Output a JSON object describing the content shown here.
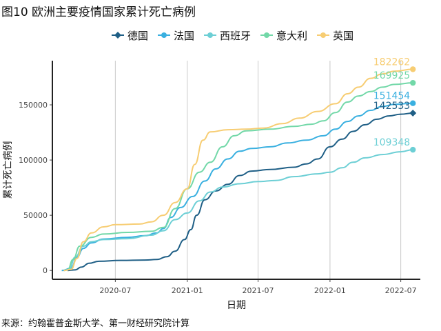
{
  "title": "图10 欧洲主要疫情国家累计死亡病例",
  "source": "来源：约翰霍普金斯大学、第一财经研究院计算",
  "chart_data": {
    "type": "line",
    "xlabel": "日期",
    "ylabel": "累计死亡病例",
    "x_ticks": [
      "2020-07",
      "2021-01",
      "2021-07",
      "2022-01",
      "2022-07"
    ],
    "y_ticks": [
      0,
      50000,
      100000,
      150000
    ],
    "y_tick_labels": [
      "0",
      "50000",
      "100000",
      "150000"
    ],
    "xlim": [
      "2020-01-22",
      "2022-08-20"
    ],
    "ylim": [
      -8000,
      190000
    ],
    "grid": "vertical major gridlines",
    "legend_position": "top",
    "series": [
      {
        "name": "德国",
        "color": "#1f5f86",
        "marker": "diamond",
        "end_label": "142533",
        "points": [
          [
            "2020-03-01",
            0
          ],
          [
            "2020-03-20",
            500
          ],
          [
            "2020-04-05",
            3000
          ],
          [
            "2020-04-25",
            6500
          ],
          [
            "2020-05-20",
            8300
          ],
          [
            "2020-07-15",
            9100
          ],
          [
            "2020-09-15",
            9400
          ],
          [
            "2020-10-15",
            9900
          ],
          [
            "2020-11-10",
            12500
          ],
          [
            "2020-12-01",
            17500
          ],
          [
            "2020-12-25",
            28000
          ],
          [
            "2021-01-10",
            37000
          ],
          [
            "2021-01-25",
            50000
          ],
          [
            "2021-02-15",
            64000
          ],
          [
            "2021-03-15",
            72000
          ],
          [
            "2021-04-15",
            78000
          ],
          [
            "2021-05-15",
            86000
          ],
          [
            "2021-06-15",
            90000
          ],
          [
            "2021-08-01",
            91500
          ],
          [
            "2021-10-01",
            93500
          ],
          [
            "2021-11-01",
            96500
          ],
          [
            "2021-12-01",
            101000
          ],
          [
            "2022-01-01",
            112000
          ],
          [
            "2022-02-01",
            119000
          ],
          [
            "2022-03-01",
            126000
          ],
          [
            "2022-04-01",
            132000
          ],
          [
            "2022-05-01",
            137000
          ],
          [
            "2022-06-01",
            140000
          ],
          [
            "2022-07-01",
            141500
          ],
          [
            "2022-08-01",
            142533
          ]
        ]
      },
      {
        "name": "法国",
        "color": "#3ab0e0",
        "marker": "circle",
        "end_label": "151454",
        "points": [
          [
            "2020-02-15",
            0
          ],
          [
            "2020-03-10",
            2000
          ],
          [
            "2020-03-25",
            12000
          ],
          [
            "2020-04-10",
            20000
          ],
          [
            "2020-05-01",
            25000
          ],
          [
            "2020-06-01",
            28500
          ],
          [
            "2020-08-01",
            30000
          ],
          [
            "2020-09-15",
            31500
          ],
          [
            "2020-10-15",
            34000
          ],
          [
            "2020-11-01",
            38000
          ],
          [
            "2020-11-20",
            48000
          ],
          [
            "2020-12-15",
            57000
          ],
          [
            "2021-01-15",
            67000
          ],
          [
            "2021-02-15",
            81000
          ],
          [
            "2021-03-15",
            92000
          ],
          [
            "2021-04-15",
            101000
          ],
          [
            "2021-05-15",
            108000
          ],
          [
            "2021-06-15",
            110500
          ],
          [
            "2021-08-01",
            112000
          ],
          [
            "2021-09-15",
            115500
          ],
          [
            "2021-11-01",
            118000
          ],
          [
            "2021-12-15",
            122000
          ],
          [
            "2022-01-15",
            128000
          ],
          [
            "2022-02-15",
            135000
          ],
          [
            "2022-03-15",
            140000
          ],
          [
            "2022-04-15",
            145000
          ],
          [
            "2022-05-15",
            148500
          ],
          [
            "2022-06-15",
            150500
          ],
          [
            "2022-08-01",
            151454
          ]
        ]
      },
      {
        "name": "西班牙",
        "color": "#6dcfd5",
        "marker": "circle",
        "end_label": "109348",
        "points": [
          [
            "2020-02-20",
            0
          ],
          [
            "2020-03-05",
            1000
          ],
          [
            "2020-03-20",
            12000
          ],
          [
            "2020-04-10",
            22000
          ],
          [
            "2020-05-01",
            26000
          ],
          [
            "2020-06-01",
            28000
          ],
          [
            "2020-08-01",
            28800
          ],
          [
            "2020-10-01",
            32000
          ],
          [
            "2020-11-01",
            36000
          ],
          [
            "2020-12-01",
            46000
          ],
          [
            "2021-01-01",
            52000
          ],
          [
            "2021-02-01",
            63000
          ],
          [
            "2021-03-01",
            71000
          ],
          [
            "2021-04-01",
            75500
          ],
          [
            "2021-05-15",
            78500
          ],
          [
            "2021-07-01",
            80500
          ],
          [
            "2021-08-15",
            81500
          ],
          [
            "2021-10-01",
            85000
          ],
          [
            "2021-12-01",
            87500
          ],
          [
            "2022-01-01",
            89000
          ],
          [
            "2022-02-01",
            93000
          ],
          [
            "2022-03-01",
            98000
          ],
          [
            "2022-04-01",
            102000
          ],
          [
            "2022-05-15",
            105000
          ],
          [
            "2022-07-01",
            107500
          ],
          [
            "2022-08-01",
            109348
          ]
        ]
      },
      {
        "name": "意大利",
        "color": "#72d8a8",
        "marker": "circle",
        "end_label": "169925",
        "points": [
          [
            "2020-02-20",
            0
          ],
          [
            "2020-03-01",
            500
          ],
          [
            "2020-03-15",
            10000
          ],
          [
            "2020-04-01",
            22000
          ],
          [
            "2020-05-01",
            30000
          ],
          [
            "2020-06-01",
            33000
          ],
          [
            "2020-08-01",
            34500
          ],
          [
            "2020-10-01",
            35500
          ],
          [
            "2020-11-01",
            39000
          ],
          [
            "2020-12-01",
            56000
          ],
          [
            "2021-01-01",
            74000
          ],
          [
            "2021-02-01",
            89000
          ],
          [
            "2021-03-01",
            98000
          ],
          [
            "2021-04-01",
            112000
          ],
          [
            "2021-05-01",
            122000
          ],
          [
            "2021-06-01",
            126500
          ],
          [
            "2021-08-01",
            128000
          ],
          [
            "2021-10-01",
            130500
          ],
          [
            "2021-11-15",
            132500
          ],
          [
            "2021-12-15",
            135500
          ],
          [
            "2022-01-15",
            143000
          ],
          [
            "2022-02-15",
            152500
          ],
          [
            "2022-03-15",
            158000
          ],
          [
            "2022-04-15",
            162000
          ],
          [
            "2022-05-15",
            166000
          ],
          [
            "2022-06-15",
            168500
          ],
          [
            "2022-08-01",
            169925
          ]
        ]
      },
      {
        "name": "英国",
        "color": "#f7cd73",
        "marker": "circle",
        "end_label": "182262",
        "points": [
          [
            "2020-02-20",
            0
          ],
          [
            "2020-03-10",
            1000
          ],
          [
            "2020-03-25",
            11000
          ],
          [
            "2020-04-10",
            26000
          ],
          [
            "2020-05-01",
            34000
          ],
          [
            "2020-06-01",
            39500
          ],
          [
            "2020-07-01",
            41500
          ],
          [
            "2020-09-01",
            42000
          ],
          [
            "2020-10-01",
            44000
          ],
          [
            "2020-11-01",
            50000
          ],
          [
            "2020-12-01",
            61500
          ],
          [
            "2021-01-01",
            74000
          ],
          [
            "2021-01-20",
            96000
          ],
          [
            "2021-02-10",
            118000
          ],
          [
            "2021-03-01",
            125500
          ],
          [
            "2021-04-15",
            127500
          ],
          [
            "2021-06-01",
            128000
          ],
          [
            "2021-07-15",
            129000
          ],
          [
            "2021-09-01",
            133000
          ],
          [
            "2021-10-15",
            138000
          ],
          [
            "2021-12-01",
            144000
          ],
          [
            "2022-01-15",
            151000
          ],
          [
            "2022-02-15",
            160000
          ],
          [
            "2022-03-15",
            166000
          ],
          [
            "2022-04-15",
            174000
          ],
          [
            "2022-05-15",
            178000
          ],
          [
            "2022-06-15",
            180500
          ],
          [
            "2022-08-01",
            182262
          ]
        ]
      }
    ]
  }
}
